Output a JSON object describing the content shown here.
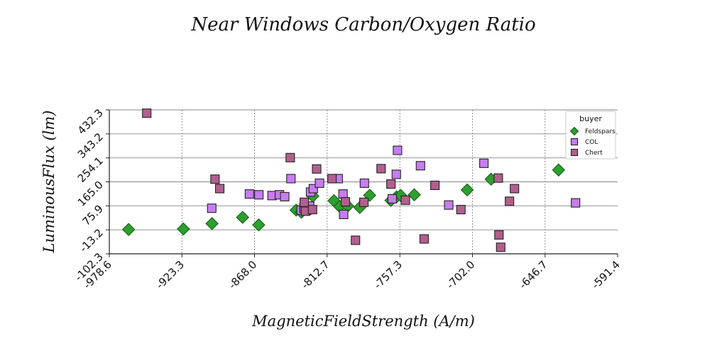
{
  "chart_data": {
    "type": "scatter",
    "title": "Near Windows Carbon/Oxygen Ratio",
    "xlabel": "MagneticFieldStrength (A/m)",
    "ylabel": "LuminousFlux (lm)",
    "xlim": [
      -978.6,
      -591.4
    ],
    "ylim": [
      -102.3,
      432.3
    ],
    "x_ticks": [
      "-978.6",
      "-923.3",
      "-868.0",
      "-812.7",
      "-757.3",
      "-702.0",
      "-646.7",
      "-591.4"
    ],
    "y_ticks": [
      "-102.3",
      "-13.2",
      "75.9",
      "165.0",
      "254.1",
      "343.2",
      "432.3"
    ],
    "x_grid": "dashed",
    "y_grid": "solid",
    "legend": {
      "title": "buyer",
      "position": "top-right"
    },
    "series": [
      {
        "name": "Feldspars",
        "marker": "diamond",
        "color": "#2ca02c",
        "points": [
          [
            -963.9,
            -12.0
          ],
          [
            -922.2,
            -10.0
          ],
          [
            -900.4,
            10.0
          ],
          [
            -877.1,
            33.0
          ],
          [
            -864.8,
            5.0
          ],
          [
            -836.3,
            60.0
          ],
          [
            -832.3,
            52.0
          ],
          [
            -830.1,
            63.0
          ],
          [
            -827.0,
            66.0
          ],
          [
            -823.6,
            112.0
          ],
          [
            -807.5,
            95.0
          ],
          [
            -803.1,
            73.0
          ],
          [
            -797.0,
            75.0
          ],
          [
            -787.8,
            70.0
          ],
          [
            -780.3,
            115.0
          ],
          [
            -764.1,
            96.0
          ],
          [
            -759.9,
            109.0
          ],
          [
            -756.8,
            115.0
          ],
          [
            -746.3,
            117.0
          ],
          [
            -706.0,
            135.0
          ],
          [
            -687.8,
            175.0
          ],
          [
            -636.4,
            209.0
          ]
        ]
      },
      {
        "name": "COL",
        "marker": "square",
        "color": "#c77cf0",
        "points": [
          [
            -900.6,
            67.0
          ],
          [
            -871.9,
            120.0
          ],
          [
            -864.7,
            117.0
          ],
          [
            -854.7,
            114.0
          ],
          [
            -849.0,
            117.0
          ],
          [
            -845.0,
            110.0
          ],
          [
            -840.3,
            177.0
          ],
          [
            -832.5,
            60.0
          ],
          [
            -828.3,
            59.0
          ],
          [
            -826.0,
            75.0
          ],
          [
            -825.3,
            127.0
          ],
          [
            -823.2,
            140.0
          ],
          [
            -818.5,
            160.0
          ],
          [
            -804.3,
            177.0
          ],
          [
            -800.6,
            120.0
          ],
          [
            -800.1,
            44.0
          ],
          [
            -784.3,
            160.0
          ],
          [
            -763.1,
            102.0
          ],
          [
            -760.0,
            193.0
          ],
          [
            -759.1,
            282.0
          ],
          [
            -741.6,
            225.0
          ],
          [
            -720.1,
            79.0
          ],
          [
            -693.3,
            234.0
          ],
          [
            -623.5,
            87.0
          ]
        ]
      },
      {
        "name": "Chert",
        "marker": "square",
        "color": "#b25f8e",
        "points": [
          [
            -950.1,
            420.0
          ],
          [
            -898.1,
            175.0
          ],
          [
            -894.5,
            140.0
          ],
          [
            -840.8,
            255.0
          ],
          [
            -830.4,
            67.0
          ],
          [
            -829.2,
            56.0
          ],
          [
            -830.1,
            89.0
          ],
          [
            -823.8,
            62.0
          ],
          [
            -820.7,
            213.0
          ],
          [
            -809.0,
            177.0
          ],
          [
            -798.8,
            91.0
          ],
          [
            -791.1,
            -52.0
          ],
          [
            -784.7,
            89.0
          ],
          [
            -771.6,
            214.0
          ],
          [
            -764.1,
            157.0
          ],
          [
            -753.1,
            97.0
          ],
          [
            -738.8,
            -47.0
          ],
          [
            -730.6,
            152.0
          ],
          [
            -710.8,
            62.0
          ],
          [
            -682.3,
            179.0
          ],
          [
            -681.8,
            -32.0
          ],
          [
            -680.5,
            -78.0
          ],
          [
            -673.8,
            93.0
          ],
          [
            -670.0,
            140.0
          ]
        ]
      }
    ]
  },
  "colors": {
    "feldspars_edge": "#1a5c1a",
    "col_edge": "#222222",
    "chert_edge": "#222222"
  }
}
